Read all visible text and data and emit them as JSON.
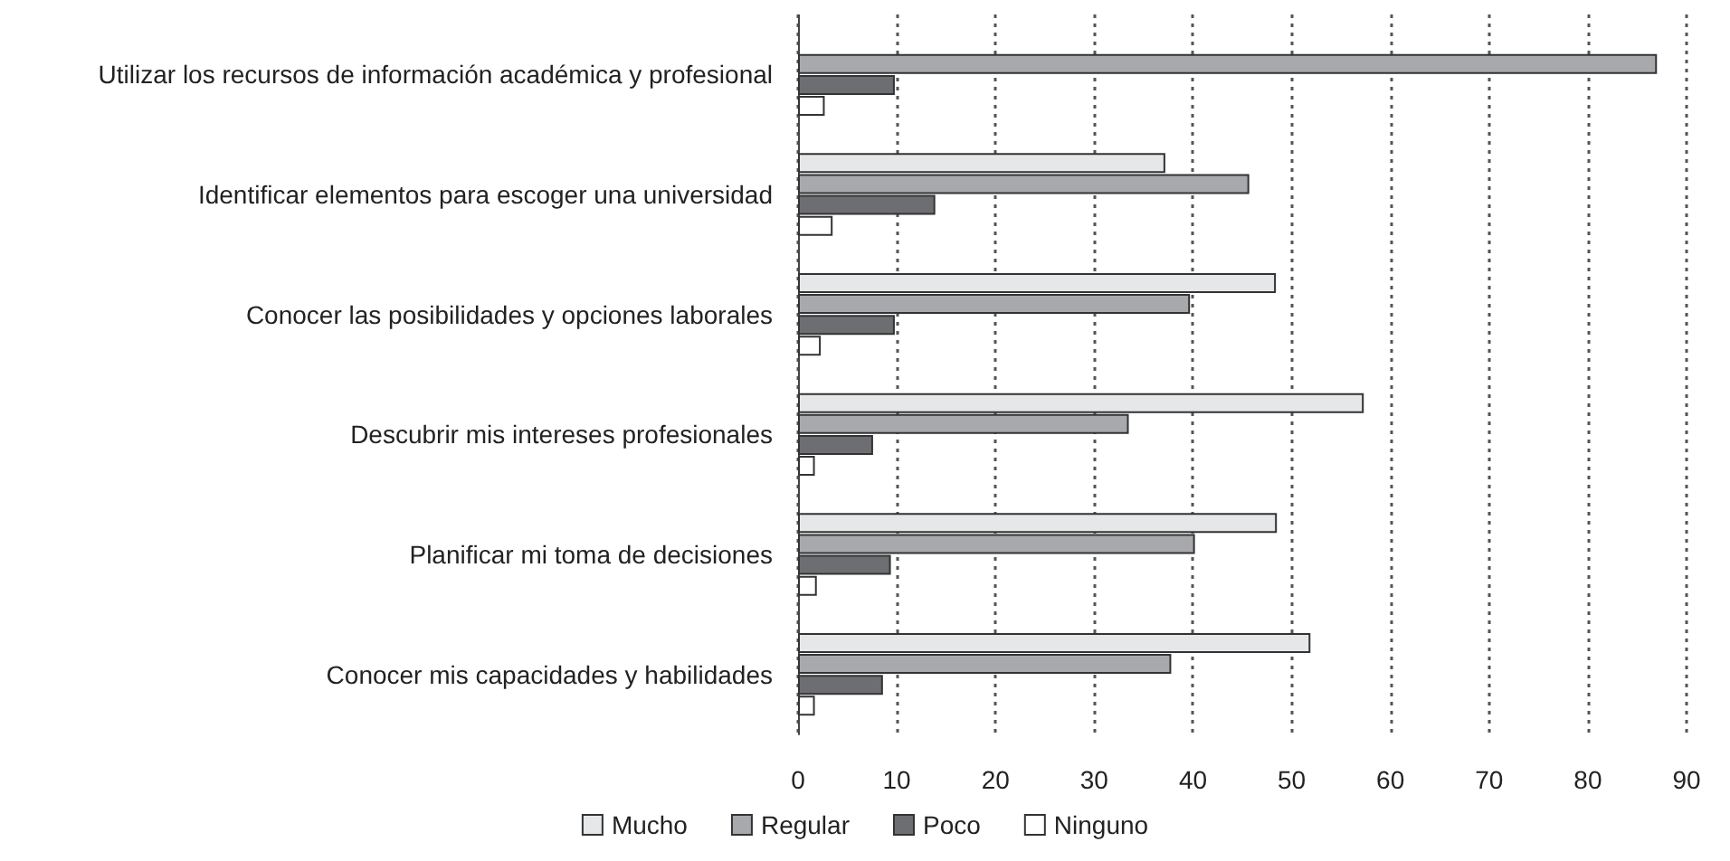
{
  "chart_data": {
    "type": "bar",
    "orientation": "horizontal",
    "categories": [
      "Utilizar los recursos de información académica y profesional",
      "Identificar elementos para escoger una universidad",
      "Conocer las posibilidades y opciones laborales",
      "Descubrir mis intereses profesionales",
      "Planificar mi toma de decisiones",
      "Conocer mis capacidades y habilidades"
    ],
    "series": [
      {
        "name": "Mucho",
        "color": "#e6e7e8",
        "values": [
          null,
          37.2,
          48.4,
          57.3,
          48.5,
          51.9
        ]
      },
      {
        "name": "Regular",
        "color": "#a7a9ac",
        "values": [
          87,
          45.7,
          39.7,
          33.5,
          40.2,
          37.8
        ]
      },
      {
        "name": "Poco",
        "color": "#6d6e71",
        "values": [
          9.8,
          13.9,
          9.8,
          7.6,
          9.4,
          8.6
        ]
      },
      {
        "name": "Ninguno",
        "color": "#ffffff",
        "values": [
          2.7,
          3.5,
          2.3,
          1.7,
          1.9,
          1.7
        ]
      }
    ],
    "xlim": [
      0,
      90
    ],
    "xticks": [
      0,
      10,
      20,
      30,
      40,
      50,
      60,
      70,
      80,
      90
    ],
    "grid": "x",
    "legend": "bottom"
  }
}
